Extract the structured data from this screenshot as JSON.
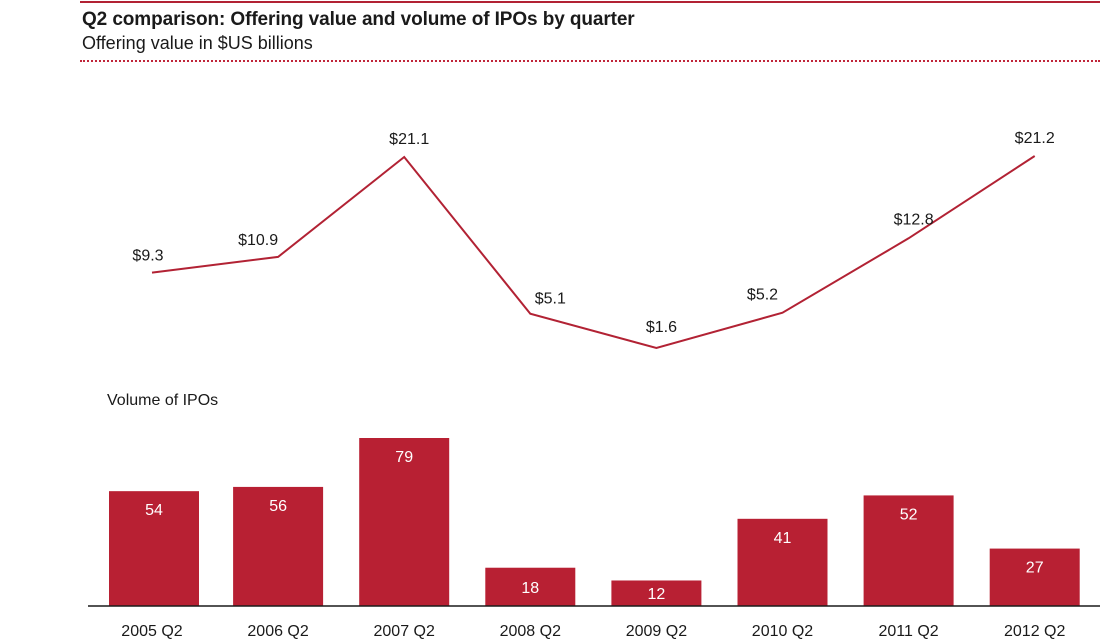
{
  "header": {
    "title": "Q2 comparison: Offering value and volume of IPOs by quarter",
    "subtitle": "Offering value in $US billions"
  },
  "colors": {
    "accent": "#b22234",
    "bar": "#b82033",
    "line": "#b22234",
    "text": "#1a1a1a",
    "axis": "#1a1a1a"
  },
  "chart_data": [
    {
      "type": "line",
      "title": "Offering value in $US billions",
      "categories": [
        "2005 Q2",
        "2006 Q2",
        "2007 Q2",
        "2008 Q2",
        "2009 Q2",
        "2010 Q2",
        "2011 Q2",
        "2012 Q2"
      ],
      "values": [
        9.3,
        10.9,
        21.1,
        5.1,
        1.6,
        5.2,
        12.8,
        21.2
      ],
      "labels": [
        "$9.3",
        "$10.9",
        "$21.1",
        "$5.1",
        "$1.6",
        "$5.2",
        "$12.8",
        "$21.2"
      ],
      "xlabel": "",
      "ylabel": "Offering value ($US billions)",
      "ylim": [
        0,
        22
      ],
      "grid": false,
      "legend": "none"
    },
    {
      "type": "bar",
      "title": "Volume of IPOs",
      "categories": [
        "2005 Q2",
        "2006 Q2",
        "2007 Q2",
        "2008 Q2",
        "2009 Q2",
        "2010 Q2",
        "2011 Q2",
        "2012 Q2"
      ],
      "values": [
        54,
        56,
        79,
        18,
        12,
        41,
        52,
        27
      ],
      "xlabel": "",
      "ylabel": "Volume of IPOs",
      "ylim": [
        0,
        80
      ],
      "grid": false,
      "legend": "none"
    }
  ]
}
